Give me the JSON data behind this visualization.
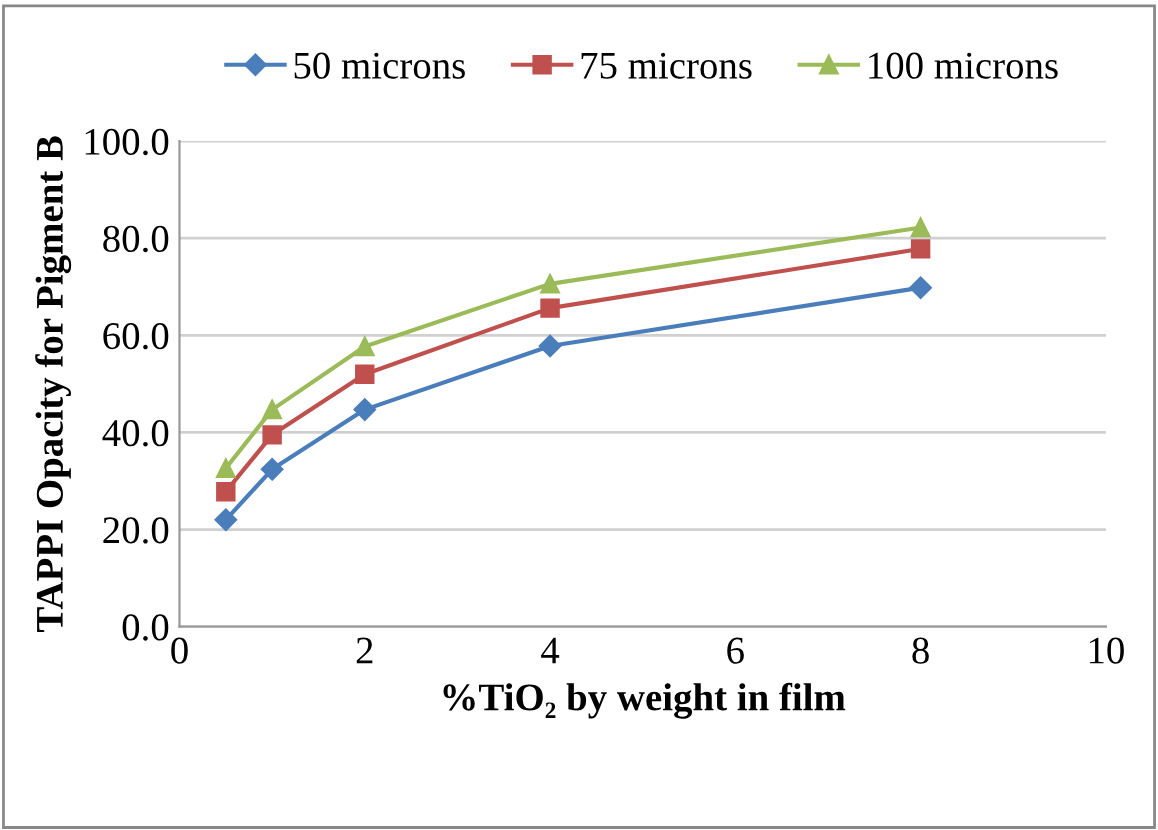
{
  "chart_data": {
    "type": "line",
    "xlabel": "%TiO₂ by weight in film",
    "ylabel": "TAPPI Opacity for Pigment B",
    "x": [
      0.5,
      1,
      2,
      4,
      8
    ],
    "series": [
      {
        "name": "50 microns",
        "color": "#4a7ebb",
        "marker": "diamond",
        "values": [
          22.0,
          32.4,
          44.7,
          57.8,
          69.8
        ]
      },
      {
        "name": "75 microns",
        "color": "#c0504d",
        "marker": "square",
        "values": [
          27.8,
          39.5,
          52.0,
          65.6,
          77.8
        ]
      },
      {
        "name": "100 microns",
        "color": "#9bbb59",
        "marker": "triangle",
        "values": [
          32.6,
          44.7,
          57.7,
          70.6,
          82.2
        ]
      }
    ],
    "xlim": [
      0,
      10
    ],
    "xticks": [
      0,
      2,
      4,
      6,
      8,
      10
    ],
    "ylim": [
      0,
      100
    ],
    "yticks": [
      {
        "value": 0,
        "label": "0.0"
      },
      {
        "value": 20,
        "label": "20.0"
      },
      {
        "value": 40,
        "label": "40.0"
      },
      {
        "value": 60,
        "label": "60.0"
      },
      {
        "value": 80,
        "label": "80.0"
      },
      {
        "value": 100,
        "label": "100.0"
      }
    ],
    "grid": "y",
    "legend": "top",
    "line_style": "solid"
  }
}
